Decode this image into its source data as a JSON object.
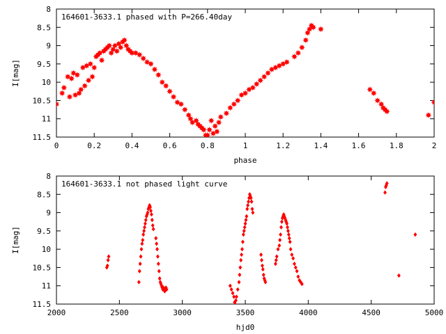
{
  "chart_data": [
    {
      "type": "scatter",
      "title": "164601-3633.1 phased with P=266.40day",
      "xlabel": "phase",
      "ylabel": "I[mag]",
      "xlim": [
        0,
        2
      ],
      "ylim": [
        8,
        11.5
      ],
      "y_inverted": true,
      "xticks": [
        "0",
        "0.2",
        "0.4",
        "0.6",
        "0.8",
        "1",
        "1.2",
        "1.4",
        "1.6",
        "1.8",
        "2"
      ],
      "yticks": [
        "8",
        "8.5",
        "9",
        "9.5",
        "10",
        "10.5",
        "11",
        "11.5"
      ],
      "color": "#ff0000",
      "marker": "star",
      "series": [
        {
          "x": [
            0.0,
            0.03,
            0.04,
            0.06,
            0.07,
            0.08,
            0.09,
            0.1,
            0.11,
            0.12,
            0.13,
            0.14,
            0.15,
            0.16,
            0.17,
            0.18,
            0.19,
            0.2,
            0.21,
            0.22,
            0.23,
            0.24,
            0.25,
            0.26,
            0.27,
            0.28,
            0.29,
            0.3,
            0.31,
            0.32,
            0.33,
            0.34,
            0.35,
            0.36,
            0.37,
            0.38,
            0.39,
            0.4,
            0.42,
            0.44,
            0.46,
            0.48,
            0.5,
            0.52,
            0.54,
            0.56,
            0.58,
            0.6,
            0.62,
            0.64,
            0.66,
            0.68,
            0.7,
            0.71,
            0.72,
            0.74,
            0.75,
            0.76,
            0.77,
            0.78,
            0.79,
            0.8,
            0.81,
            0.82,
            0.83,
            0.84,
            0.85,
            0.86,
            0.87,
            0.9,
            0.92,
            0.94,
            0.96,
            0.98,
            1.0,
            1.02,
            1.04,
            1.06,
            1.08,
            1.1,
            1.12,
            1.14,
            1.16,
            1.18,
            1.2,
            1.22,
            1.26,
            1.28,
            1.3,
            1.32,
            1.33,
            1.34,
            1.35,
            1.36,
            1.4,
            1.66,
            1.68,
            1.7,
            1.72,
            1.73,
            1.74,
            1.75,
            1.97,
            2.0
          ],
          "y": [
            10.6,
            10.3,
            10.15,
            9.85,
            10.4,
            9.9,
            9.75,
            10.35,
            9.8,
            10.3,
            10.2,
            9.6,
            10.1,
            9.55,
            9.95,
            9.5,
            9.85,
            9.6,
            9.3,
            9.25,
            9.2,
            9.4,
            9.15,
            9.1,
            9.05,
            9.0,
            9.2,
            9.1,
            9.0,
            9.15,
            8.95,
            9.05,
            8.9,
            8.85,
            9.0,
            9.1,
            9.15,
            9.2,
            9.2,
            9.25,
            9.35,
            9.45,
            9.5,
            9.65,
            9.8,
            10.0,
            10.1,
            10.25,
            10.4,
            10.55,
            10.6,
            10.75,
            10.9,
            11.0,
            11.1,
            11.05,
            11.15,
            11.2,
            11.25,
            11.3,
            11.45,
            11.45,
            11.3,
            11.05,
            11.4,
            11.2,
            11.35,
            11.1,
            10.95,
            10.85,
            10.7,
            10.6,
            10.5,
            10.35,
            10.3,
            10.2,
            10.15,
            10.05,
            9.95,
            9.85,
            9.75,
            9.65,
            9.6,
            9.55,
            9.5,
            9.45,
            9.3,
            9.2,
            9.05,
            8.85,
            8.65,
            8.55,
            8.45,
            8.5,
            8.55,
            10.2,
            10.3,
            10.5,
            10.6,
            10.7,
            10.75,
            10.8,
            10.9,
            10.55
          ]
        }
      ]
    },
    {
      "type": "scatter",
      "title": "164601-3633.1 not phased light curve",
      "xlabel": "hjd0",
      "ylabel": "I[mag]",
      "xlim": [
        2000,
        5000
      ],
      "ylim": [
        8,
        11.5
      ],
      "y_inverted": true,
      "xticks": [
        "2000",
        "2500",
        "3000",
        "3500",
        "4000",
        "4500",
        "5000"
      ],
      "yticks": [
        "8",
        "8.5",
        "9",
        "9.5",
        "10",
        "10.5",
        "11",
        "11.5"
      ],
      "color": "#ff0000",
      "marker": "diamond",
      "series": [
        {
          "x": [
            2400,
            2405,
            2410,
            2415,
            2655,
            2660,
            2665,
            2670,
            2675,
            2680,
            2685,
            2690,
            2695,
            2700,
            2705,
            2710,
            2715,
            2720,
            2725,
            2730,
            2735,
            2740,
            2745,
            2750,
            2755,
            2760,
            2765,
            2770,
            2790,
            2795,
            2800,
            2805,
            2810,
            2815,
            2820,
            2825,
            2830,
            2835,
            2840,
            2845,
            2850,
            2855,
            2860,
            2865,
            2870,
            2875,
            3380,
            3390,
            3400,
            3410,
            3415,
            3420,
            3425,
            3430,
            3440,
            3450,
            3455,
            3460,
            3465,
            3470,
            3475,
            3480,
            3485,
            3490,
            3495,
            3500,
            3505,
            3510,
            3515,
            3520,
            3525,
            3530,
            3535,
            3540,
            3545,
            3550,
            3555,
            3560,
            3625,
            3630,
            3635,
            3640,
            3645,
            3650,
            3655,
            3660,
            3740,
            3745,
            3750,
            3760,
            3770,
            3775,
            3780,
            3785,
            3790,
            3795,
            3800,
            3805,
            3810,
            3815,
            3820,
            3825,
            3830,
            3835,
            3840,
            3845,
            3850,
            3855,
            3860,
            3870,
            3880,
            3890,
            3900,
            3910,
            3920,
            3930,
            3940,
            3950,
            4610,
            4615,
            4620,
            4625,
            4720,
            4850
          ],
          "y": [
            10.5,
            10.45,
            10.3,
            10.2,
            10.9,
            10.6,
            10.4,
            10.2,
            10.0,
            9.85,
            9.75,
            9.6,
            9.5,
            9.4,
            9.3,
            9.2,
            9.1,
            9.05,
            9.0,
            8.9,
            8.85,
            8.8,
            8.85,
            8.95,
            9.05,
            9.2,
            9.35,
            9.45,
            9.7,
            9.85,
            10.0,
            10.2,
            10.4,
            10.6,
            10.8,
            10.9,
            10.95,
            11.0,
            11.05,
            11.1,
            11.05,
            11.1,
            11.15,
            11.1,
            11.05,
            11.1,
            11.0,
            11.1,
            11.2,
            11.3,
            11.45,
            11.5,
            11.4,
            11.3,
            11.1,
            10.9,
            10.7,
            10.5,
            10.3,
            10.15,
            10.0,
            9.8,
            9.6,
            9.5,
            9.4,
            9.3,
            9.2,
            9.1,
            8.9,
            8.8,
            8.7,
            8.6,
            8.5,
            8.55,
            8.6,
            8.7,
            8.9,
            9.0,
            10.15,
            10.3,
            10.45,
            10.55,
            10.7,
            10.8,
            10.85,
            10.9,
            10.4,
            10.3,
            10.2,
            10.0,
            9.9,
            9.75,
            9.6,
            9.4,
            9.25,
            9.15,
            9.1,
            9.05,
            9.1,
            9.15,
            9.2,
            9.25,
            9.3,
            9.4,
            9.5,
            9.6,
            9.7,
            9.8,
            10.0,
            10.15,
            10.25,
            10.4,
            10.5,
            10.6,
            10.75,
            10.85,
            10.9,
            10.95,
            8.45,
            8.3,
            8.25,
            8.2,
            10.72,
            9.6
          ]
        }
      ]
    }
  ]
}
